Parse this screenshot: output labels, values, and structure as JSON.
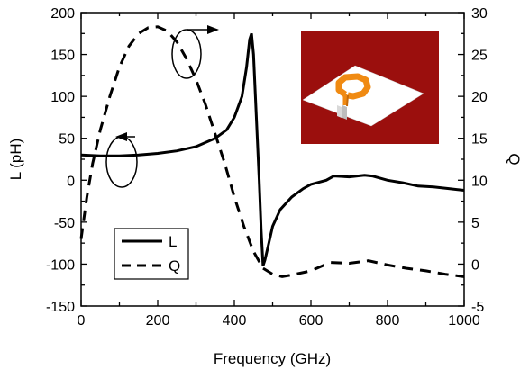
{
  "chart_data": {
    "type": "line",
    "xlabel": "Frequency (GHz)",
    "ylabel_left": "L (pH)",
    "ylabel_right": "Q",
    "xlim": [
      0,
      1000
    ],
    "ylim_left": [
      -150,
      200
    ],
    "ylim_right": [
      -5,
      30
    ],
    "x_ticks": [
      "0",
      "200",
      "400",
      "600",
      "800",
      "1000"
    ],
    "y_left_ticks": [
      "-150",
      "-100",
      "-50",
      "0",
      "50",
      "100",
      "150",
      "200"
    ],
    "y_right_ticks": [
      "-5",
      "0",
      "5",
      "10",
      "15",
      "20",
      "25",
      "30"
    ],
    "grid": false,
    "legend_position": "bottom-left",
    "legend": [
      {
        "label": "L",
        "style": "solid"
      },
      {
        "label": "Q",
        "style": "dashed"
      }
    ],
    "series": [
      {
        "name": "L",
        "axis": "left",
        "style": "solid",
        "x": [
          0,
          50,
          100,
          150,
          200,
          250,
          300,
          350,
          380,
          400,
          420,
          432,
          440,
          445,
          450,
          455,
          460,
          465,
          470,
          475,
          480,
          490,
          500,
          520,
          550,
          580,
          600,
          640,
          660,
          700,
          740,
          760,
          800,
          840,
          880,
          920,
          960,
          1000
        ],
        "y": [
          30,
          29,
          29,
          30,
          32,
          35,
          40,
          50,
          60,
          75,
          100,
          135,
          168,
          175,
          150,
          100,
          50,
          0,
          -60,
          -102,
          -95,
          -75,
          -55,
          -35,
          -20,
          -10,
          -5,
          0,
          5,
          4,
          6,
          5,
          0,
          -3,
          -7,
          -8,
          -10,
          -12
        ]
      },
      {
        "name": "Q",
        "axis": "right",
        "style": "dashed",
        "x": [
          0,
          15,
          30,
          50,
          75,
          100,
          125,
          150,
          175,
          200,
          225,
          250,
          275,
          300,
          325,
          350,
          375,
          400,
          425,
          450,
          475,
          500,
          525,
          550,
          600,
          650,
          700,
          750,
          800,
          850,
          900,
          950,
          1000
        ],
        "y": [
          3,
          8,
          12,
          16,
          20,
          23.5,
          26,
          27.5,
          28.2,
          28.3,
          27.8,
          26.5,
          24.5,
          22,
          19,
          15.5,
          12,
          8,
          4.5,
          1.5,
          -0.5,
          -1.2,
          -1.5,
          -1.3,
          -0.8,
          0.2,
          0.1,
          0.4,
          -0.1,
          -0.5,
          -0.8,
          -1.2,
          -1.5
        ]
      }
    ],
    "annotations": [
      {
        "type": "ellipse-arrow",
        "series": "Q",
        "arrow_direction": "right"
      },
      {
        "type": "ellipse-arrow",
        "series": "L",
        "arrow_direction": "left"
      }
    ],
    "inset": {
      "description_icon": "octagonal-spiral-inductor-icon",
      "background_color": "#9B0F0D",
      "coil_color": "#F08A12",
      "substrate_color": "#FFFFFF"
    }
  }
}
